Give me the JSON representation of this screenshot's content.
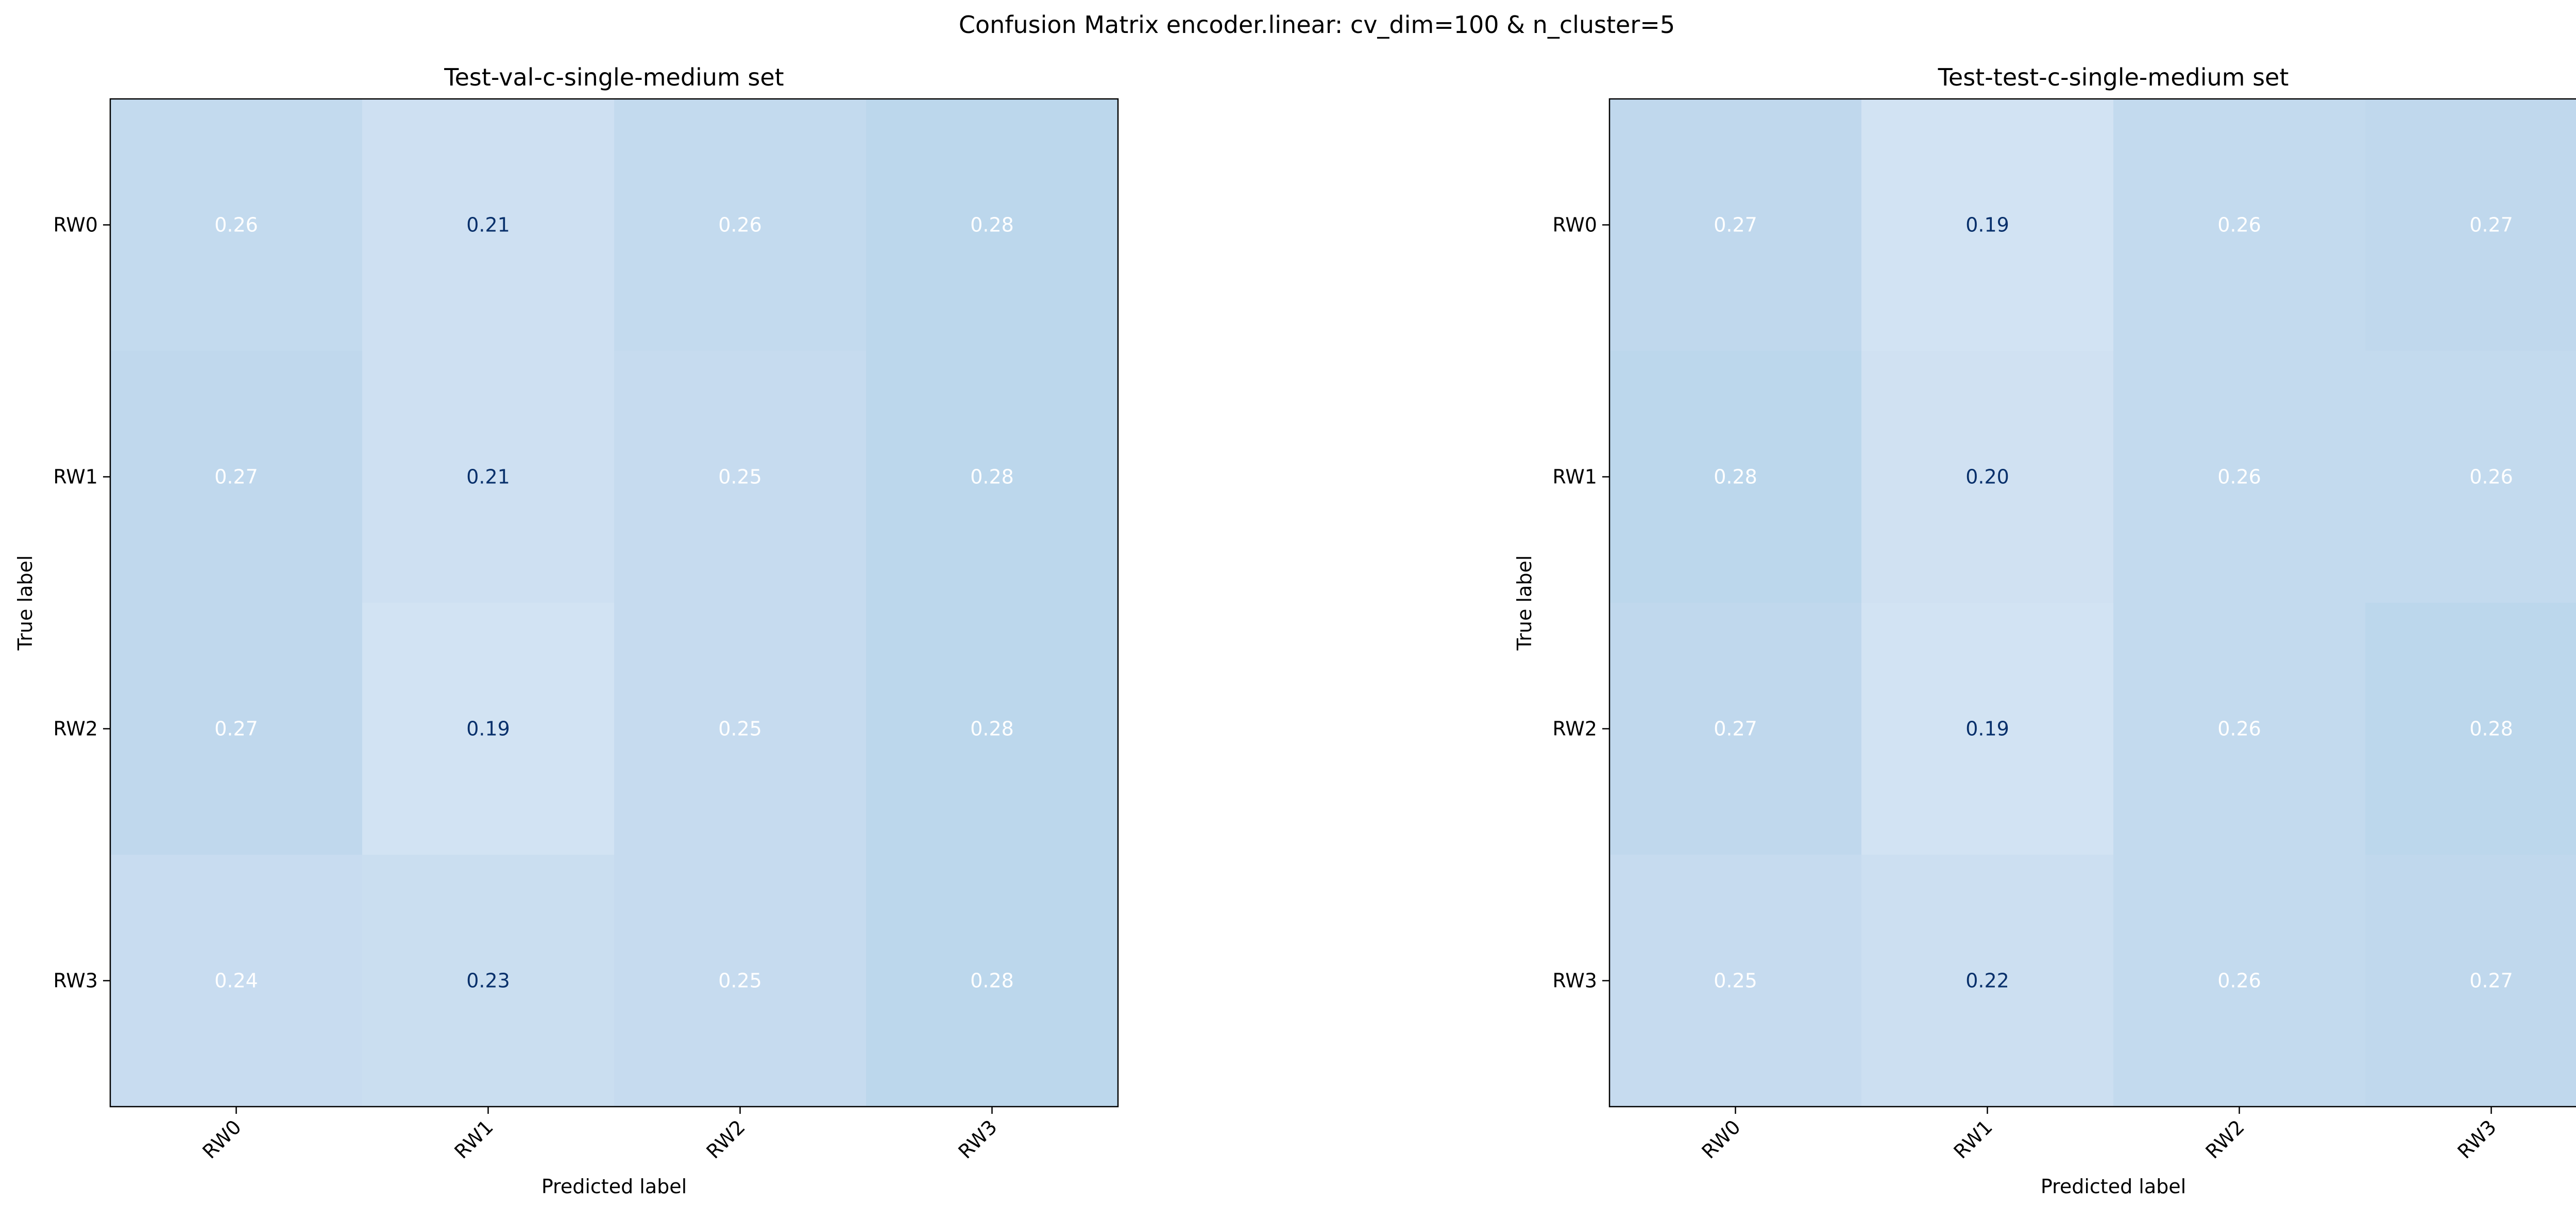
{
  "figure": {
    "suptitle": "Confusion Matrix encoder.linear: cv_dim=100 & n_cluster=5"
  },
  "chart_data": [
    {
      "type": "heatmap",
      "title": "Test-val-c-single-medium set",
      "xlabel": "Predicted label",
      "ylabel": "True label",
      "x_categories": [
        "RW0",
        "RW1",
        "RW2",
        "RW3"
      ],
      "y_categories": [
        "RW0",
        "RW1",
        "RW2",
        "RW3"
      ],
      "labels": [
        [
          "0.26",
          "0.21",
          "0.26",
          "0.28"
        ],
        [
          "0.27",
          "0.21",
          "0.25",
          "0.28"
        ],
        [
          "0.27",
          "0.19",
          "0.25",
          "0.28"
        ],
        [
          "0.24",
          "0.23",
          "0.25",
          "0.28"
        ]
      ],
      "values": [
        [
          0.26,
          0.21,
          0.26,
          0.28
        ],
        [
          0.27,
          0.21,
          0.25,
          0.28
        ],
        [
          0.27,
          0.19,
          0.25,
          0.28
        ],
        [
          0.24,
          0.23,
          0.25,
          0.28
        ]
      ],
      "colormap": "Blues",
      "colorbar": false,
      "light_text_color": "#ffffff",
      "dark_text_color": "#08306b"
    },
    {
      "type": "heatmap",
      "title": "Test-test-c-single-medium set",
      "xlabel": "Predicted label",
      "ylabel": "True label",
      "x_categories": [
        "RW0",
        "RW1",
        "RW2",
        "RW3"
      ],
      "y_categories": [
        "RW0",
        "RW1",
        "RW2",
        "RW3"
      ],
      "labels": [
        [
          "0.27",
          "0.19",
          "0.26",
          "0.27"
        ],
        [
          "0.28",
          "0.20",
          "0.26",
          "0.26"
        ],
        [
          "0.27",
          "0.19",
          "0.26",
          "0.28"
        ],
        [
          "0.25",
          "0.22",
          "0.26",
          "0.27"
        ]
      ],
      "values": [
        [
          0.27,
          0.19,
          0.26,
          0.27
        ],
        [
          0.28,
          0.2,
          0.26,
          0.26
        ],
        [
          0.27,
          0.19,
          0.26,
          0.28
        ],
        [
          0.25,
          0.22,
          0.26,
          0.27
        ]
      ],
      "colormap": "Blues",
      "colorbar": false,
      "light_text_color": "#ffffff",
      "dark_text_color": "#08306b"
    }
  ]
}
